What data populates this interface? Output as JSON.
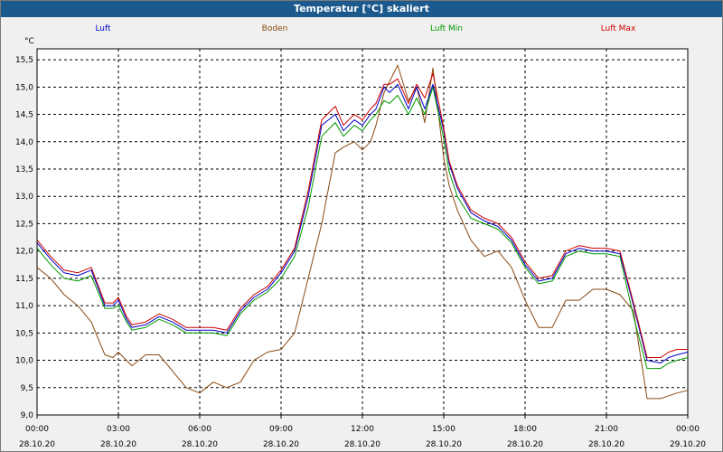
{
  "window": {
    "title": "Temperatur [°C] skaliert"
  },
  "chart_data": {
    "type": "line",
    "title": "Temperatur [°C] skaliert",
    "ylabel": "°C",
    "xlabel": "",
    "ylim": [
      9.0,
      15.7
    ],
    "xlim": [
      0,
      24
    ],
    "grid": true,
    "yticks": [
      9.0,
      9.5,
      10.0,
      10.5,
      11.0,
      11.5,
      12.0,
      12.5,
      13.0,
      13.5,
      14.0,
      14.5,
      15.0,
      15.5
    ],
    "ytick_labels": [
      "9,0",
      "9,5",
      "10,0",
      "10,5",
      "11,0",
      "11,5",
      "12,0",
      "12,5",
      "13,0",
      "13,5",
      "14,0",
      "14,5",
      "15,0",
      "15,5"
    ],
    "xticks": [
      {
        "x": 0,
        "time": "00:00",
        "date": "28.10.20"
      },
      {
        "x": 3,
        "time": "03:00",
        "date": "28.10.20"
      },
      {
        "x": 6,
        "time": "06:00",
        "date": "28.10.20"
      },
      {
        "x": 9,
        "time": "09:00",
        "date": "28.10.20"
      },
      {
        "x": 12,
        "time": "12:00",
        "date": "28.10.20"
      },
      {
        "x": 15,
        "time": "15:00",
        "date": "28.10.20"
      },
      {
        "x": 18,
        "time": "18:00",
        "date": "28.10.20"
      },
      {
        "x": 21,
        "time": "21:00",
        "date": "28.10.20"
      },
      {
        "x": 24,
        "time": "00:00",
        "date": "29.10.20"
      }
    ],
    "series": [
      {
        "name": "Luft",
        "color": "#0000cc",
        "id": "luft",
        "x": [
          0,
          0.5,
          1,
          1.5,
          2,
          2.5,
          2.8,
          3,
          3.3,
          3.5,
          4,
          4.5,
          5,
          5.5,
          6,
          6.5,
          7,
          7.5,
          8,
          8.5,
          9,
          9.5,
          10,
          10.5,
          11,
          11.3,
          11.7,
          12,
          12.3,
          12.5,
          12.8,
          13,
          13.3,
          13.7,
          14,
          14.3,
          14.6,
          15,
          15.2,
          15.5,
          16,
          16.5,
          17,
          17.5,
          18,
          18.5,
          19,
          19.5,
          20,
          20.5,
          21,
          21.5,
          22,
          22.5,
          23,
          23.3,
          23.6,
          24
        ],
        "values": [
          12.15,
          11.85,
          11.6,
          11.55,
          11.65,
          11.0,
          11.0,
          11.1,
          10.75,
          10.6,
          10.65,
          10.8,
          10.7,
          10.55,
          10.55,
          10.55,
          10.5,
          10.9,
          11.15,
          11.3,
          11.6,
          12.0,
          13.0,
          14.3,
          14.5,
          14.2,
          14.4,
          14.3,
          14.5,
          14.6,
          15.0,
          14.9,
          15.05,
          14.6,
          15.0,
          14.6,
          15.05,
          14.2,
          13.6,
          13.15,
          12.7,
          12.55,
          12.45,
          12.2,
          11.75,
          11.45,
          11.5,
          11.95,
          12.05,
          12.0,
          12.0,
          11.95,
          11.0,
          10.0,
          9.95,
          10.05,
          10.1,
          10.15
        ]
      },
      {
        "name": "Boden",
        "color": "#8b4a10",
        "id": "boden",
        "x": [
          0,
          0.5,
          1,
          1.5,
          2,
          2.5,
          2.8,
          3,
          3.3,
          3.5,
          4,
          4.5,
          5,
          5.5,
          6,
          6.5,
          7,
          7.5,
          8,
          8.5,
          9,
          9.5,
          10,
          10.5,
          11,
          11.3,
          11.7,
          12,
          12.3,
          12.5,
          12.8,
          13,
          13.3,
          13.7,
          14,
          14.3,
          14.6,
          15,
          15.2,
          15.5,
          16,
          16.5,
          17,
          17.5,
          18,
          18.5,
          19,
          19.5,
          20,
          20.5,
          21,
          21.5,
          22,
          22.5,
          23,
          23.3,
          23.6,
          24
        ],
        "values": [
          11.7,
          11.5,
          11.2,
          11.0,
          10.7,
          10.1,
          10.05,
          10.15,
          10.0,
          9.9,
          10.1,
          10.1,
          9.8,
          9.5,
          9.4,
          9.6,
          9.5,
          9.6,
          10.0,
          10.15,
          10.2,
          10.5,
          11.5,
          12.5,
          13.8,
          13.9,
          14.0,
          13.85,
          14.0,
          14.3,
          14.9,
          15.1,
          15.4,
          14.75,
          15.0,
          14.35,
          15.35,
          13.7,
          13.2,
          12.75,
          12.2,
          11.9,
          12.0,
          11.7,
          11.1,
          10.6,
          10.6,
          11.1,
          11.1,
          11.3,
          11.3,
          11.2,
          10.9,
          9.3,
          9.3,
          9.35,
          9.4,
          9.45
        ]
      },
      {
        "name": "Luft Min",
        "color": "#009900",
        "id": "luftmin",
        "x": [
          0,
          0.5,
          1,
          1.5,
          2,
          2.5,
          2.8,
          3,
          3.3,
          3.5,
          4,
          4.5,
          5,
          5.5,
          6,
          6.5,
          7,
          7.5,
          8,
          8.5,
          9,
          9.5,
          10,
          10.5,
          11,
          11.3,
          11.7,
          12,
          12.3,
          12.5,
          12.8,
          13,
          13.3,
          13.7,
          14,
          14.3,
          14.6,
          15,
          15.2,
          15.5,
          16,
          16.5,
          17,
          17.5,
          18,
          18.5,
          19,
          19.5,
          20,
          20.5,
          21,
          21.5,
          22,
          22.5,
          23,
          23.3,
          23.6,
          24
        ],
        "values": [
          12.05,
          11.75,
          11.5,
          11.45,
          11.55,
          10.95,
          10.95,
          11.0,
          10.7,
          10.55,
          10.6,
          10.75,
          10.65,
          10.5,
          10.5,
          10.5,
          10.45,
          10.85,
          11.1,
          11.25,
          11.5,
          11.9,
          12.8,
          14.1,
          14.35,
          14.1,
          14.3,
          14.2,
          14.4,
          14.5,
          14.75,
          14.7,
          14.85,
          14.5,
          14.8,
          14.5,
          15.0,
          14.05,
          13.45,
          13.0,
          12.6,
          12.5,
          12.4,
          12.15,
          11.7,
          11.4,
          11.45,
          11.9,
          12.0,
          11.95,
          11.95,
          11.9,
          10.8,
          9.85,
          9.85,
          9.95,
          10.0,
          10.05
        ]
      },
      {
        "name": "Luft Max",
        "color": "#cc0000",
        "id": "luftmax",
        "x": [
          0,
          0.5,
          1,
          1.5,
          2,
          2.5,
          2.8,
          3,
          3.3,
          3.5,
          4,
          4.5,
          5,
          5.5,
          6,
          6.5,
          7,
          7.5,
          8,
          8.5,
          9,
          9.5,
          10,
          10.5,
          11,
          11.3,
          11.7,
          12,
          12.3,
          12.5,
          12.8,
          13,
          13.3,
          13.7,
          14,
          14.3,
          14.6,
          15,
          15.2,
          15.5,
          16,
          16.5,
          17,
          17.5,
          18,
          18.5,
          19,
          19.5,
          20,
          20.5,
          21,
          21.5,
          22,
          22.5,
          23,
          23.3,
          23.6,
          24
        ],
        "values": [
          12.2,
          11.9,
          11.65,
          11.6,
          11.7,
          11.05,
          11.05,
          11.15,
          10.8,
          10.65,
          10.7,
          10.85,
          10.75,
          10.6,
          10.6,
          10.6,
          10.55,
          10.95,
          11.2,
          11.35,
          11.65,
          12.05,
          13.1,
          14.4,
          14.65,
          14.3,
          14.5,
          14.4,
          14.6,
          14.7,
          15.05,
          15.05,
          15.15,
          14.7,
          15.05,
          14.8,
          15.25,
          14.25,
          13.65,
          13.2,
          12.75,
          12.6,
          12.5,
          12.25,
          11.8,
          11.5,
          11.55,
          12.0,
          12.1,
          12.05,
          12.05,
          12.0,
          11.05,
          10.05,
          10.05,
          10.15,
          10.2,
          10.2
        ]
      }
    ]
  }
}
